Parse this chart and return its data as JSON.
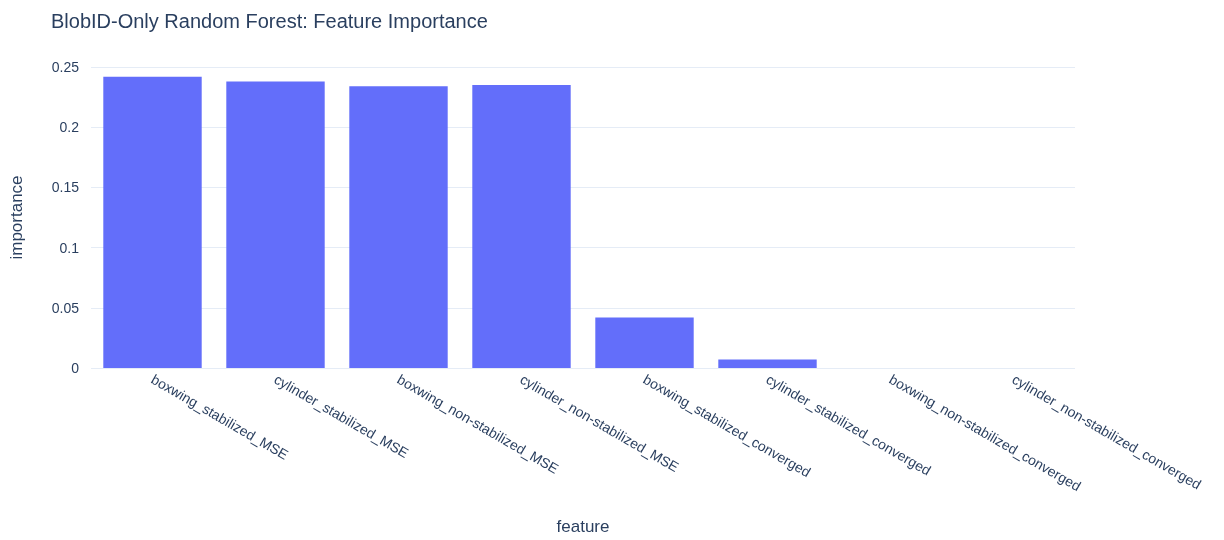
{
  "chart_data": {
    "type": "bar",
    "title": "BlobID-Only Random Forest: Feature Importance",
    "xlabel": "feature",
    "ylabel": "importance",
    "categories": [
      "boxwing_stabilized_MSE",
      "cylinder_stabilized_MSE",
      "boxwing_non-stabilized_MSE",
      "cylinder_non-stabilized_MSE",
      "boxwing_stabilized_converged",
      "cylinder_stabilized_converged",
      "boxwing_non-stabilized_converged",
      "cylinder_non-stabilized_converged"
    ],
    "values": [
      0.242,
      0.238,
      0.234,
      0.235,
      0.042,
      0.007,
      0,
      0
    ],
    "color": "#636efa",
    "ylim": [
      0,
      0.25
    ],
    "yticks": [
      0,
      0.05,
      0.1,
      0.15,
      0.2,
      0.25
    ],
    "grid": "y"
  }
}
